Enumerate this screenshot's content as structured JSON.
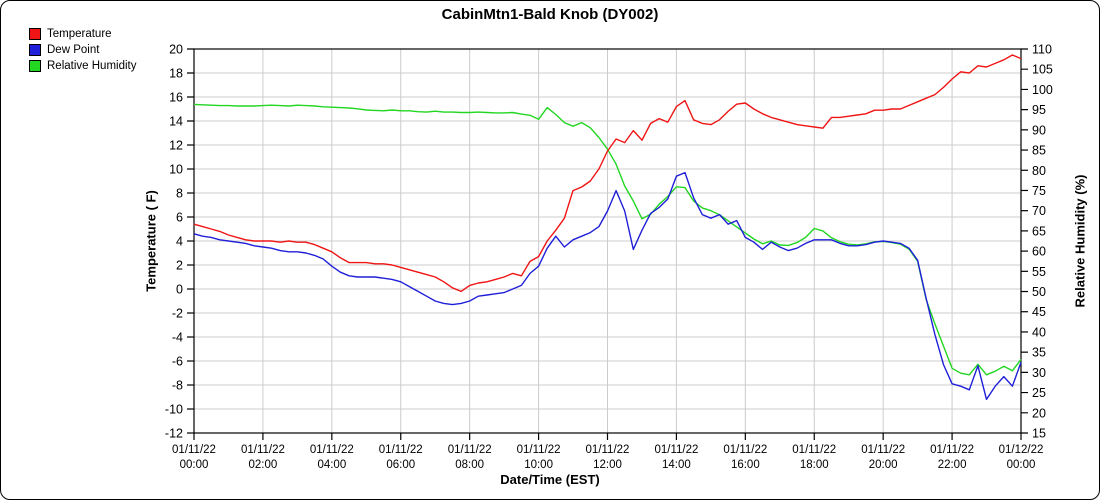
{
  "title": "CabinMtn1-Bald Knob (DY002)",
  "legend": {
    "items": [
      {
        "label": "Temperature",
        "color": "#f01414"
      },
      {
        "label": "Dew Point",
        "color": "#1f1fd9"
      },
      {
        "label": "Relative Humidity",
        "color": "#22d622"
      }
    ]
  },
  "chart_data": {
    "type": "line",
    "title": "CabinMtn1-Bald Knob (DY002)",
    "interval_minutes": 15,
    "grid": true,
    "grid_color": "#cccccc",
    "axis_color": "#000000",
    "x_axis": {
      "label": "Date/Time (EST)",
      "ticks": [
        {
          "date": "01/11/22",
          "time": "00:00"
        },
        {
          "date": "01/11/22",
          "time": "02:00"
        },
        {
          "date": "01/11/22",
          "time": "04:00"
        },
        {
          "date": "01/11/22",
          "time": "06:00"
        },
        {
          "date": "01/11/22",
          "time": "08:00"
        },
        {
          "date": "01/11/22",
          "time": "10:00"
        },
        {
          "date": "01/11/22",
          "time": "12:00"
        },
        {
          "date": "01/11/22",
          "time": "14:00"
        },
        {
          "date": "01/11/22",
          "time": "16:00"
        },
        {
          "date": "01/11/22",
          "time": "18:00"
        },
        {
          "date": "01/11/22",
          "time": "20:00"
        },
        {
          "date": "01/11/22",
          "time": "22:00"
        },
        {
          "date": "01/12/22",
          "time": "00:00"
        }
      ]
    },
    "y_left": {
      "label": "Temperature ( F)",
      "min": -12,
      "max": 20,
      "tick_step": 2
    },
    "y_right": {
      "label": "Relative Humidity (%)",
      "min": 15,
      "max": 110,
      "tick_step": 5
    },
    "series": [
      {
        "name": "Temperature",
        "axis": "left",
        "color": "#f01414",
        "values": [
          5.4,
          5.2,
          5.0,
          4.8,
          4.5,
          4.3,
          4.1,
          4.0,
          4.0,
          4.0,
          3.9,
          4.0,
          3.9,
          3.9,
          3.7,
          3.4,
          3.1,
          2.6,
          2.2,
          2.2,
          2.2,
          2.1,
          2.1,
          2.0,
          1.8,
          1.6,
          1.4,
          1.2,
          1.0,
          0.6,
          0.1,
          -0.2,
          0.3,
          0.5,
          0.6,
          0.8,
          1.0,
          1.3,
          1.1,
          2.3,
          2.7,
          4.0,
          4.9,
          5.9,
          8.2,
          8.5,
          9.0,
          10.0,
          11.5,
          12.5,
          12.2,
          13.2,
          12.4,
          13.8,
          14.2,
          13.9,
          15.2,
          15.7,
          14.1,
          13.8,
          13.7,
          14.1,
          14.8,
          15.4,
          15.5,
          15.0,
          14.6,
          14.3,
          14.1,
          13.9,
          13.7,
          13.6,
          13.5,
          13.4,
          14.3,
          14.3,
          14.4,
          14.5,
          14.6,
          14.9,
          14.9,
          15.0,
          15.0,
          15.3,
          15.6,
          15.9,
          16.2,
          16.8,
          17.5,
          18.1,
          18.0,
          18.6,
          18.5,
          18.8,
          19.1,
          19.5,
          19.2
        ]
      },
      {
        "name": "Dew Point",
        "axis": "left",
        "color": "#1f1fd9",
        "values": [
          4.6,
          4.4,
          4.3,
          4.1,
          4.0,
          3.9,
          3.8,
          3.6,
          3.5,
          3.4,
          3.2,
          3.1,
          3.1,
          3.0,
          2.8,
          2.5,
          1.9,
          1.4,
          1.1,
          1.0,
          1.0,
          1.0,
          0.9,
          0.8,
          0.6,
          0.2,
          -0.2,
          -0.6,
          -1.0,
          -1.2,
          -1.3,
          -1.2,
          -1.0,
          -0.6,
          -0.5,
          -0.4,
          -0.3,
          0.0,
          0.3,
          1.3,
          1.9,
          3.4,
          4.4,
          3.5,
          4.1,
          4.4,
          4.7,
          5.2,
          6.5,
          8.2,
          6.5,
          3.3,
          4.9,
          6.3,
          6.8,
          7.5,
          9.4,
          9.7,
          7.6,
          6.2,
          5.9,
          6.2,
          5.4,
          5.7,
          4.3,
          3.9,
          3.3,
          3.9,
          3.5,
          3.2,
          3.4,
          3.8,
          4.1,
          4.1,
          4.1,
          3.8,
          3.6,
          3.6,
          3.7,
          3.9,
          4.0,
          3.9,
          3.8,
          3.4,
          2.4,
          -0.8,
          -3.8,
          -6.3,
          -7.9,
          -8.1,
          -8.4,
          -6.4,
          -9.2,
          -8.1,
          -7.3,
          -8.1,
          -6.1
        ]
      },
      {
        "name": "Relative Humidity",
        "axis": "right",
        "color": "#22d622",
        "values": [
          96.3,
          96.2,
          96.1,
          96.0,
          96.0,
          95.9,
          95.9,
          95.9,
          96.0,
          96.1,
          96.0,
          95.9,
          96.1,
          96.0,
          95.9,
          95.7,
          95.6,
          95.5,
          95.4,
          95.2,
          94.9,
          94.8,
          94.7,
          94.9,
          94.7,
          94.7,
          94.5,
          94.4,
          94.6,
          94.4,
          94.4,
          94.3,
          94.3,
          94.4,
          94.3,
          94.2,
          94.2,
          94.3,
          93.9,
          93.6,
          92.6,
          95.5,
          93.8,
          91.8,
          90.9,
          91.8,
          90.5,
          88.1,
          85.2,
          81.5,
          76.1,
          72.4,
          68.0,
          69.1,
          71.6,
          73.5,
          75.9,
          75.7,
          72.4,
          70.7,
          70.0,
          69.0,
          67.5,
          66.0,
          64.5,
          63.0,
          61.8,
          62.5,
          61.5,
          61.4,
          62.1,
          63.4,
          65.6,
          65.0,
          63.3,
          62.3,
          61.7,
          61.5,
          61.8,
          62.3,
          62.4,
          62.1,
          61.7,
          60.5,
          57.5,
          48.0,
          42.0,
          36.5,
          31.0,
          29.8,
          29.4,
          32.0,
          29.4,
          30.3,
          31.5,
          30.4,
          33.2
        ]
      }
    ]
  }
}
